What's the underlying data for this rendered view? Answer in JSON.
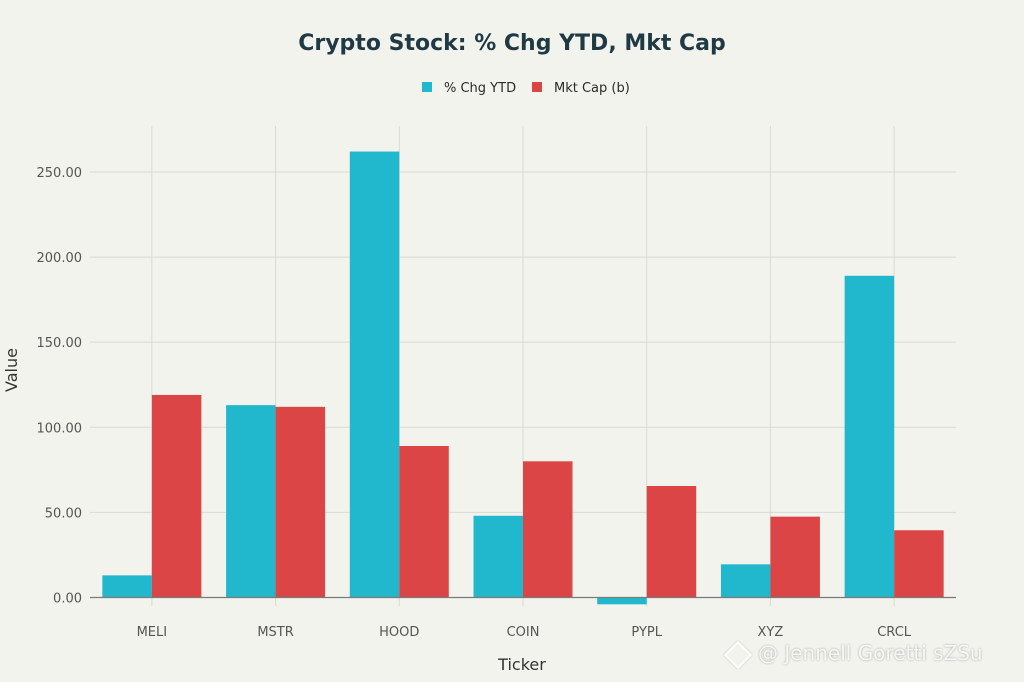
{
  "chart_data": {
    "type": "bar",
    "title": "Crypto Stock: % Chg YTD, Mkt Cap",
    "xlabel": "Ticker",
    "ylabel": "Value",
    "categories": [
      "MELI",
      "MSTR",
      "HOOD",
      "COIN",
      "PYPL",
      "XYZ",
      "CRCL"
    ],
    "series": [
      {
        "name": "% Chg YTD",
        "color": "#21b8cd",
        "values": [
          13,
          113,
          262,
          48,
          -4,
          19.5,
          189
        ]
      },
      {
        "name": "Mkt Cap (b)",
        "color": "#db4545",
        "values": [
          119,
          112,
          89,
          80,
          65.5,
          47.5,
          39.5
        ]
      }
    ],
    "ylim": [
      -5,
      277
    ],
    "yticks": [
      "0.00",
      "50.00",
      "100.00",
      "150.00",
      "200.00",
      "250.00"
    ],
    "ytick_values": [
      0,
      50,
      100,
      150,
      200,
      250
    ],
    "grid": true,
    "legend_position": "top-center"
  },
  "watermark": {
    "text": "@ Jennell Goretti sZSu"
  }
}
